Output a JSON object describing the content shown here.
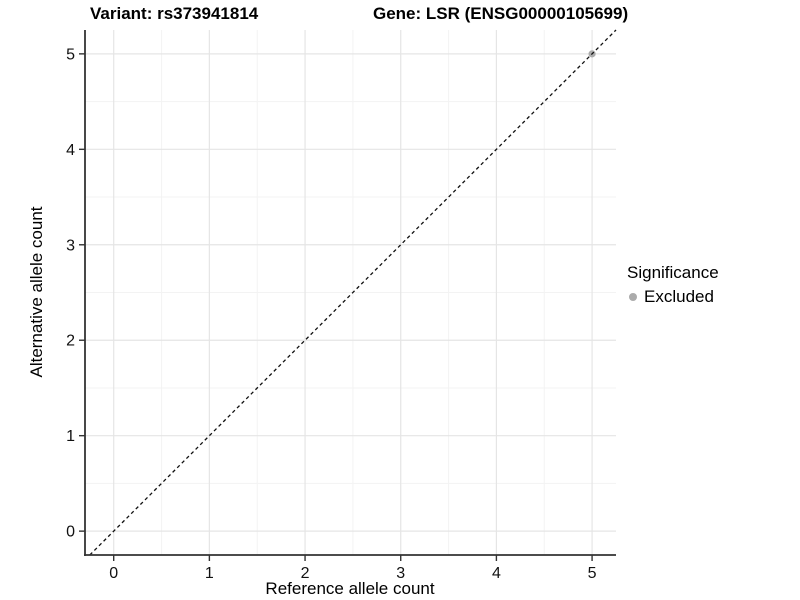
{
  "titles": {
    "variant": "Variant: rs373941814",
    "gene": "Gene: LSR (ENSG00000105699)"
  },
  "legend": {
    "title": "Significance",
    "items": [
      {
        "label": "Excluded",
        "color": "#ababab"
      }
    ]
  },
  "chart_data": {
    "type": "scatter",
    "title": "Variant: rs373941814 / Gene: LSR (ENSG00000105699)",
    "xlabel": "Reference allele count",
    "ylabel": "Alternative allele count",
    "xlim": [
      -0.3,
      5.25
    ],
    "ylim": [
      -0.25,
      5.25
    ],
    "x_ticks": [
      0,
      1,
      2,
      3,
      4,
      5
    ],
    "y_ticks": [
      0,
      1,
      2,
      3,
      4,
      5
    ],
    "minor_ticks": [
      0.5,
      1.5,
      2.5,
      3.5,
      4.5
    ],
    "series": [
      {
        "name": "Excluded",
        "color": "#ababab",
        "points": [
          {
            "x": 5,
            "y": 5
          }
        ]
      }
    ],
    "reference_line": {
      "type": "identity",
      "slope": 1,
      "intercept": 0,
      "style": "dashed",
      "color": "#111111"
    },
    "grid": {
      "major": true,
      "minor": true,
      "major_color": "#e5e5e5",
      "minor_color": "#f3f3f3"
    },
    "axis_color": "#333333",
    "legend_position": "right"
  }
}
